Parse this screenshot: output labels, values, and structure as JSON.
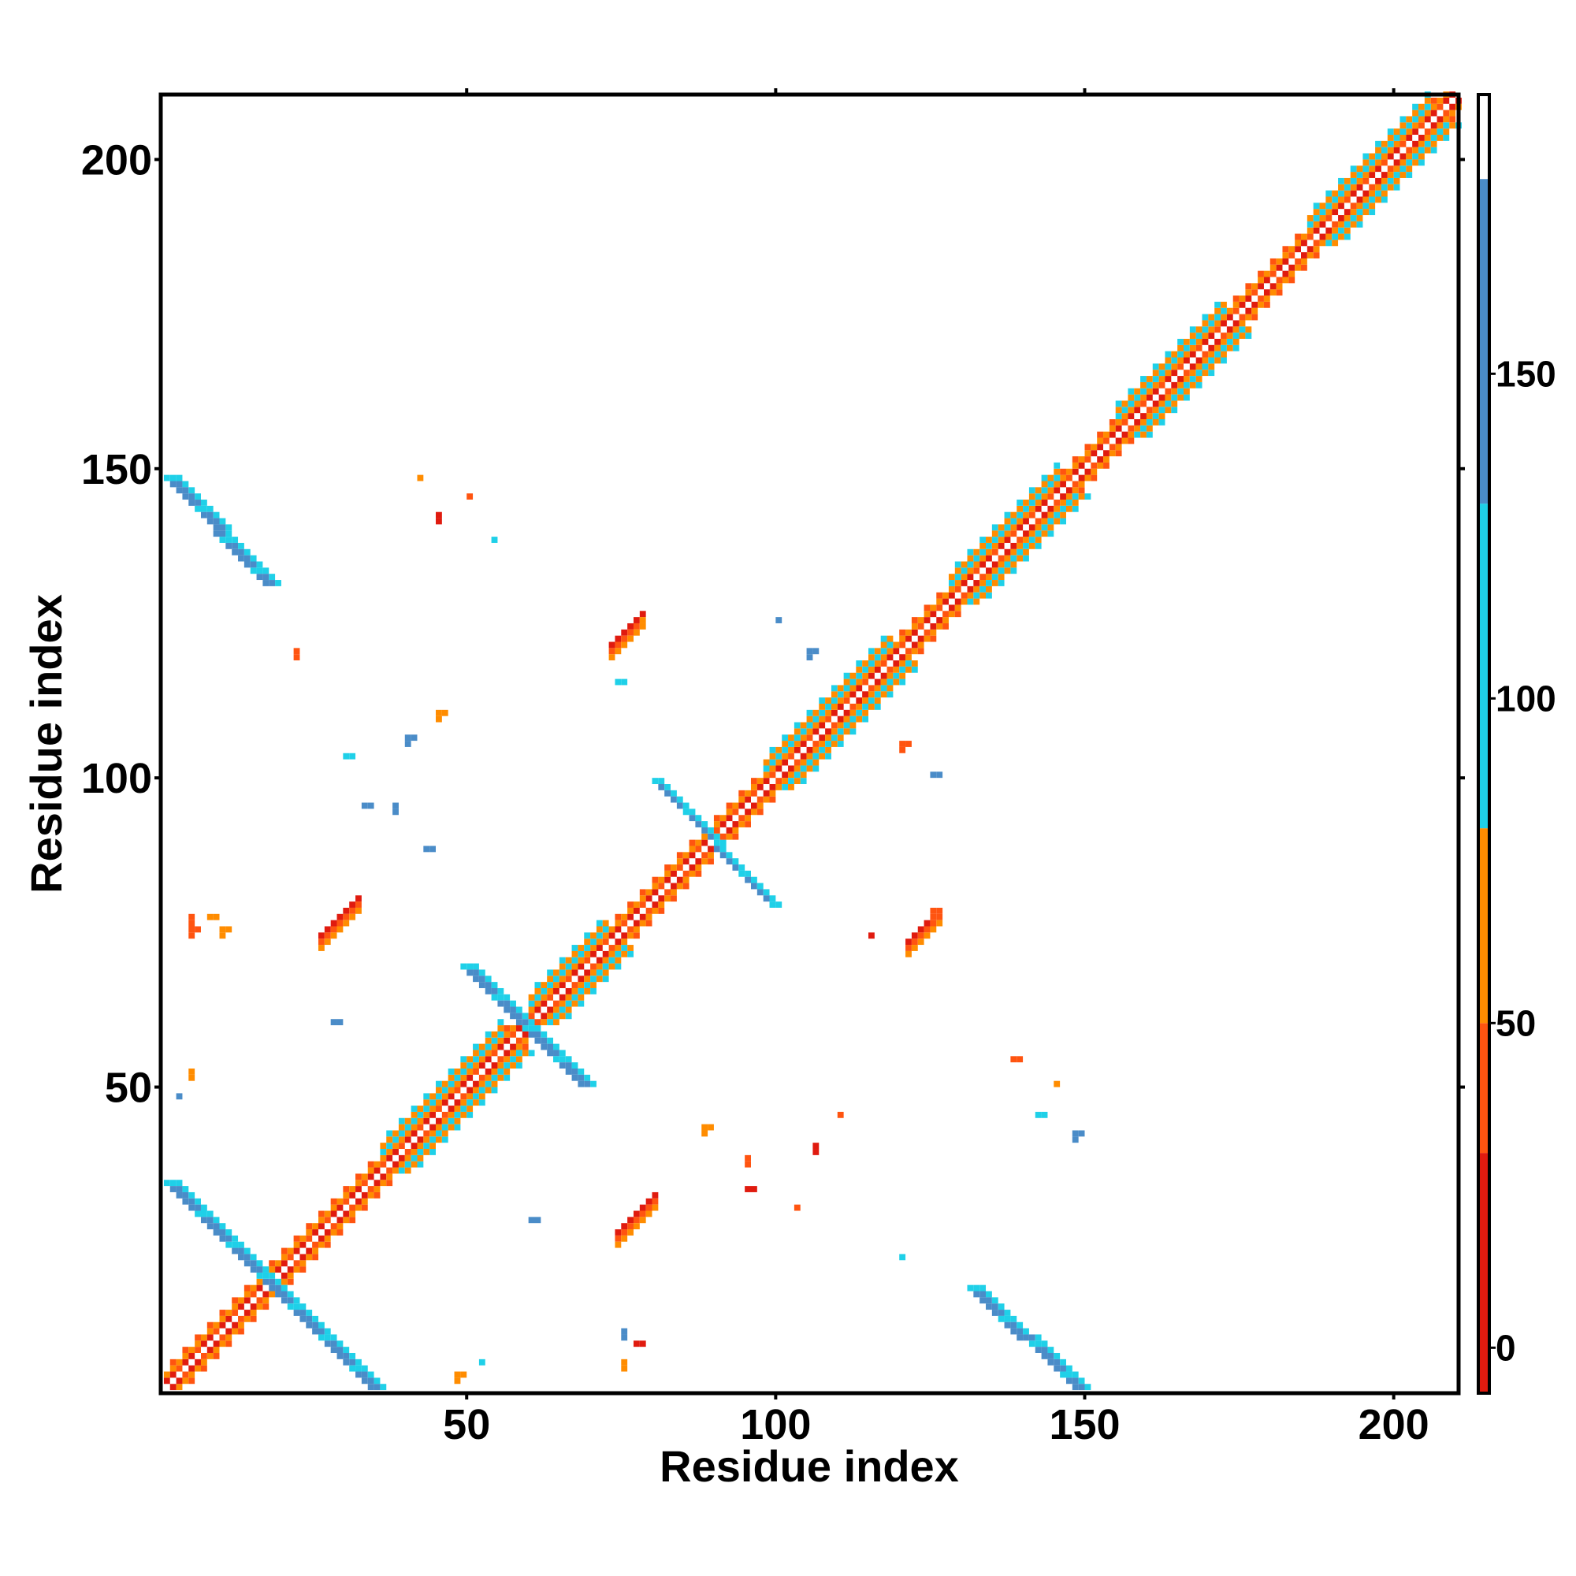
{
  "chart_data": {
    "type": "heatmap",
    "title": "",
    "xlabel": "Residue index",
    "ylabel": "Residue index",
    "xlim": [
      1,
      210
    ],
    "ylim": [
      1,
      210
    ],
    "x_ticks": [
      50,
      100,
      150,
      200
    ],
    "y_ticks": [
      50,
      100,
      150,
      200
    ],
    "colorbar": {
      "ticks": [
        0,
        50,
        100,
        150
      ],
      "range": [
        -7,
        193
      ],
      "bands": [
        {
          "from": -7,
          "to": 30,
          "color": "#e01b0f"
        },
        {
          "from": 30,
          "to": 50,
          "color": "#ff5410"
        },
        {
          "from": 50,
          "to": 80,
          "color": "#ff8c00"
        },
        {
          "from": 80,
          "to": 130,
          "color": "#1fd0e8"
        },
        {
          "from": 130,
          "to": 180,
          "color": "#4a8cc8"
        },
        {
          "from": 180,
          "to": 193,
          "color": "#ffffff"
        }
      ]
    },
    "palette": {
      "red": "#e01b0f",
      "red_orange": "#ff5410",
      "orange": "#ff8c00",
      "cyan": "#1fd0e8",
      "blue": "#4a8cc8"
    },
    "features": [
      {
        "kind": "diagonal",
        "from": 1,
        "to": 210,
        "description": "main diagonal contacts"
      },
      {
        "kind": "antiparallel",
        "from": [
          1,
          34
        ],
        "to": [
          34,
          1
        ],
        "color": "blue"
      },
      {
        "kind": "antiparallel",
        "from": [
          1,
          148
        ],
        "to": [
          21,
          130
        ],
        "color": "blue"
      },
      {
        "kind": "antiparallel",
        "from": [
          130,
          21
        ],
        "to": [
          148,
          1
        ],
        "color": "blue"
      },
      {
        "kind": "antiparallel",
        "from": [
          50,
          68
        ],
        "to": [
          68,
          50
        ],
        "color": "blue"
      },
      {
        "kind": "antiparallel",
        "from": [
          80,
          98
        ],
        "to": [
          98,
          80
        ],
        "color": "blue"
      },
      {
        "kind": "parallel",
        "from": [
          26,
          72
        ],
        "to": [
          33,
          83
        ],
        "color": "red"
      },
      {
        "kind": "parallel",
        "from": [
          72,
          26
        ],
        "to": [
          83,
          33
        ],
        "color": "red"
      },
      {
        "kind": "parallel",
        "from": [
          72,
          121
        ],
        "to": [
          79,
          128
        ],
        "color": "red"
      },
      {
        "kind": "parallel",
        "from": [
          121,
          72
        ],
        "to": [
          128,
          79
        ],
        "color": "red"
      }
    ]
  }
}
